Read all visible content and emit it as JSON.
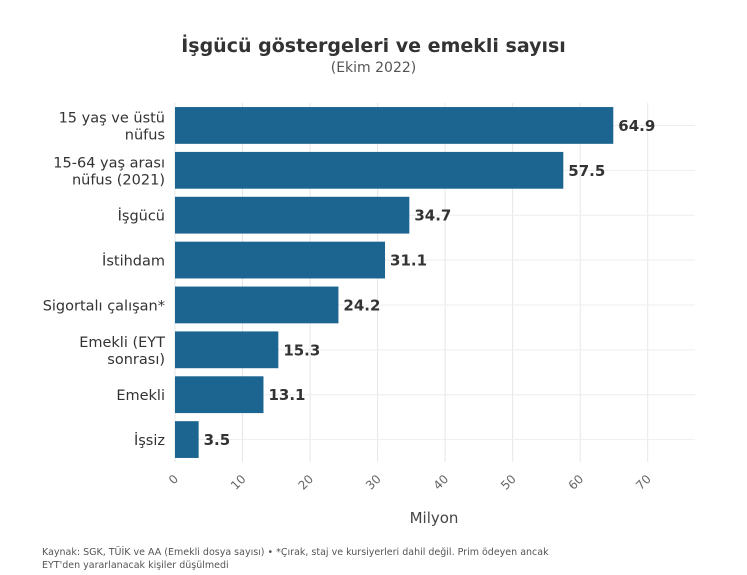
{
  "chart_data": {
    "type": "bar",
    "orientation": "horizontal",
    "title": "İşgücü göstergeleri ve emekli sayısı",
    "subtitle": "(Ekim 2022)",
    "xlabel": "Milyon",
    "ylabel": "",
    "xlim": [
      0,
      77
    ],
    "xticks": [
      0,
      10,
      20,
      30,
      40,
      50,
      60,
      70
    ],
    "grid": true,
    "legend": "none",
    "categories": [
      [
        "15 yaş ve üstü",
        "nüfus"
      ],
      [
        "15-64 yaş arası",
        "nüfus (2021)"
      ],
      [
        "İşgücü"
      ],
      [
        "İstihdam"
      ],
      [
        "Sigortalı çalışan*"
      ],
      [
        "Emekli (EYT",
        "sonrası)"
      ],
      [
        "Emekli"
      ],
      [
        "İşsiz"
      ]
    ],
    "values": [
      64.9,
      57.5,
      34.7,
      31.1,
      24.2,
      15.3,
      13.1,
      3.5
    ],
    "value_labels": [
      "64.9",
      "57.5",
      "34.7",
      "31.1",
      "24.2",
      "15.3",
      "13.1",
      "3.5"
    ],
    "bar_color": "#1c6591"
  },
  "footnote": {
    "line1": "Kaynak: SGK, TÜİK ve AA (Emekli dosya sayısı) • *Çırak, staj ve kursiyerleri dahil değil. Prim ödeyen ancak",
    "line2": "EYT'den yararlanacak kişiler düşülmedi"
  }
}
